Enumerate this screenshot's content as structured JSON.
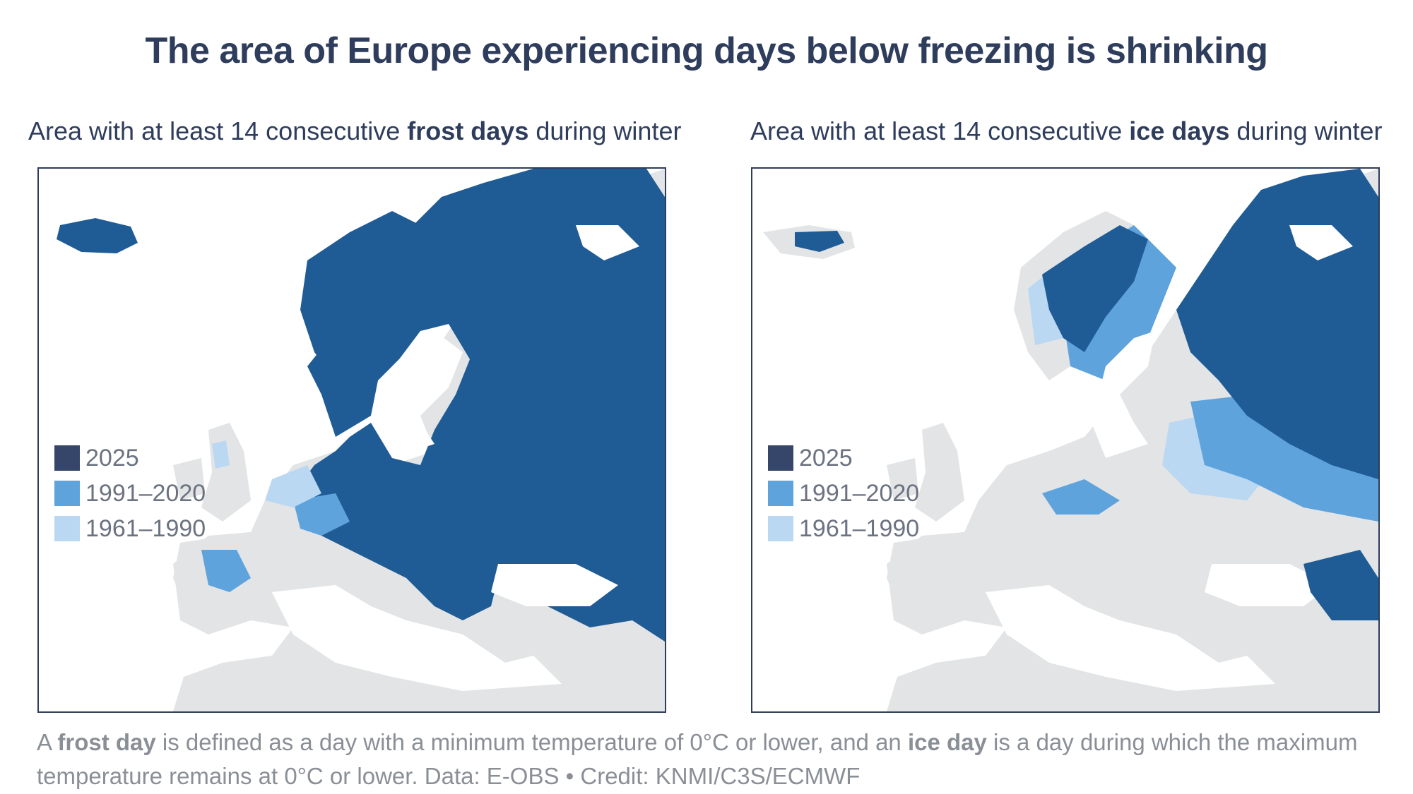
{
  "title": "The area of Europe experiencing days below freezing is shrinking",
  "panels": [
    {
      "subtitle_pre": "Area with at least 14 consecutive ",
      "subtitle_bold": "frost days",
      "subtitle_post": " during winter"
    },
    {
      "subtitle_pre": "Area with at least 14 consecutive ",
      "subtitle_bold": "ice days",
      "subtitle_post": " during winter"
    }
  ],
  "legend": [
    {
      "label": "2025",
      "color": "#36456a"
    },
    {
      "label": "1991–2020",
      "color": "#5fa3dd"
    },
    {
      "label": "1961–1990",
      "color": "#bad8f2"
    }
  ],
  "colors": {
    "land": "#e3e4e5",
    "sea": "#ffffff",
    "area_2025": "#1f5c96",
    "frame": "#2f3d5c"
  },
  "footnote": {
    "p1": "A ",
    "b1": "frost day",
    "p2": " is defined as a day with a minimum temperature of 0°C or lower, and an ",
    "b2": "ice day",
    "p3": " is a day during which the maximum temperature remains at 0°C or lower. Data: E-OBS • Credit: KNMI/C3S/ECMWF"
  }
}
